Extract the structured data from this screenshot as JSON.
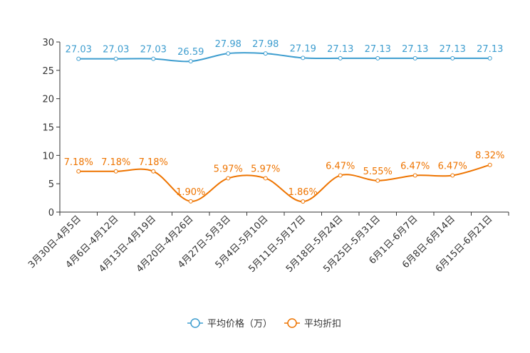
{
  "chart_data": {
    "type": "line",
    "title": "",
    "xlabel": "",
    "ylabel": "",
    "ylim": [
      0,
      30
    ],
    "yticks": [
      0,
      5,
      10,
      15,
      20,
      25,
      30
    ],
    "grid": false,
    "legend_position": "bottom-center",
    "categories": [
      "3月30日-4月5日",
      "4月6日-4月12日",
      "4月13日-4月19日",
      "4月20日-4月26日",
      "4月27日-5月3日",
      "5月4日-5月10日",
      "5月11日-5月17日",
      "5月18日-5月24日",
      "5月25日-5月31日",
      "6月1日-6月7日",
      "6月8日-6月14日",
      "6月15日-6月21日"
    ],
    "series": [
      {
        "name": "平均价格（万）",
        "color": "#3d9dcf",
        "values": [
          27.03,
          27.03,
          27.03,
          26.59,
          27.98,
          27.98,
          27.19,
          27.13,
          27.13,
          27.13,
          27.13,
          27.13
        ],
        "labels": [
          "27.03",
          "27.03",
          "27.03",
          "26.59",
          "27.98",
          "27.98",
          "27.19",
          "27.13",
          "27.13",
          "27.13",
          "27.13",
          "27.13"
        ]
      },
      {
        "name": "平均折扣",
        "color": "#ee7400",
        "values": [
          7.18,
          7.18,
          7.18,
          1.9,
          5.97,
          5.97,
          1.86,
          6.47,
          5.55,
          6.47,
          6.47,
          8.32
        ],
        "labels": [
          "7.18%",
          "7.18%",
          "7.18%",
          "1.90%",
          "5.97%",
          "5.97%",
          "1.86%",
          "6.47%",
          "5.55%",
          "6.47%",
          "6.47%",
          "8.32%"
        ]
      }
    ]
  }
}
